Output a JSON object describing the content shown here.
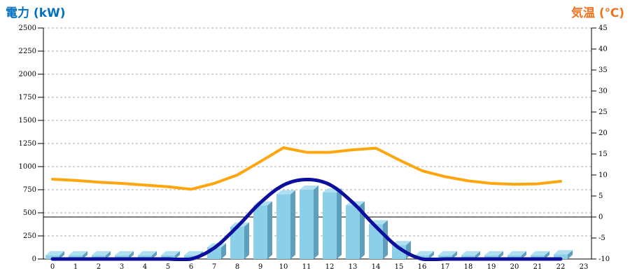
{
  "titles": {
    "left": "電力 (kW)",
    "right": "気温 (℃)"
  },
  "colors": {
    "left_title": "#0070C0",
    "right_title": "#EE7420",
    "bar_front": "#8CCFE8",
    "bar_top": "#AFDFF0",
    "bar_side": "#609FBC",
    "power_line": "#0E0E9C",
    "temp_line": "#FFA60E",
    "gridline": "#ADADAD",
    "axis": "#000000",
    "zero_line": "#000000"
  },
  "chart_data": {
    "type": "bar",
    "subtype": "combo-bar-line-dual-axis",
    "hours": [
      0,
      1,
      2,
      3,
      4,
      5,
      6,
      7,
      8,
      9,
      10,
      11,
      12,
      13,
      14,
      15,
      16,
      17,
      18,
      19,
      20,
      21,
      22,
      23
    ],
    "left_axis": {
      "title": "電力 (kW)",
      "min": 0,
      "max": 2500,
      "step": 250,
      "grid": "dashed"
    },
    "right_axis": {
      "title": "気温 (℃)",
      "min": -10,
      "max": 45,
      "step": 5
    },
    "reference_line": {
      "axis": "right",
      "value": 0,
      "style": "solid-black"
    },
    "series": [
      {
        "name": "power_bars_kw",
        "type": "bar",
        "axis": "left",
        "style": "3d-light-blue",
        "values": [
          40,
          40,
          40,
          40,
          40,
          40,
          40,
          125,
          350,
          580,
          700,
          750,
          720,
          580,
          375,
          150,
          40,
          40,
          40,
          40,
          40,
          40,
          50,
          null
        ]
      },
      {
        "name": "power_curve_kw",
        "type": "line",
        "axis": "left",
        "smooth": true,
        "style": "thick-navy",
        "values": [
          0,
          0,
          0,
          0,
          0,
          0,
          0,
          120,
          350,
          610,
          800,
          860,
          805,
          610,
          350,
          120,
          0,
          0,
          0,
          0,
          0,
          0,
          0,
          null
        ]
      },
      {
        "name": "temperature_c",
        "type": "line",
        "axis": "right",
        "smooth": false,
        "style": "thick-orange",
        "values": [
          9.0,
          8.7,
          8.3,
          8.0,
          7.6,
          7.2,
          6.6,
          8.0,
          10.0,
          13.2,
          16.5,
          15.4,
          15.4,
          16.0,
          16.4,
          13.6,
          11.0,
          9.6,
          8.6,
          8.0,
          7.8,
          7.9,
          8.5,
          null
        ]
      }
    ]
  }
}
